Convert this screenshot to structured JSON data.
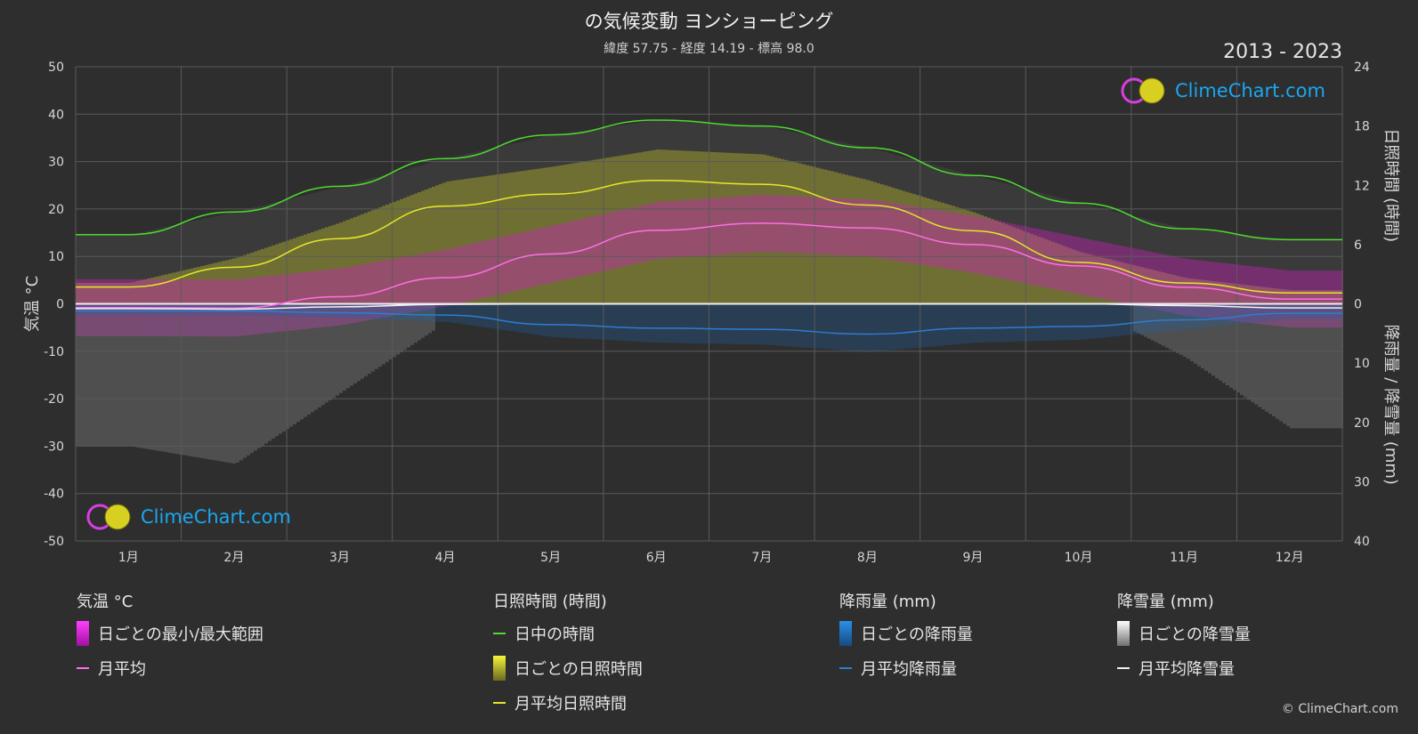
{
  "header": {
    "title": "の気候変動 ヨンショーピング",
    "subtitle": "緯度 57.75 - 経度 14.19 - 標高 98.0",
    "period": "2013 - 2023"
  },
  "branding": {
    "logo_text": "ClimeChart.com",
    "copyright": "© ClimeChart.com"
  },
  "colors": {
    "background": "#2e2e2e",
    "daylight": "#4cdb2e",
    "sunshine_line": "#e6e62a",
    "temp_line": "#ff6ee6",
    "temp_range": "#d020c0",
    "rain_line": "#2a7fd0",
    "rain_bar": "#1f5fa8",
    "snow_line": "#f0f0f0",
    "snow_bar": "#8c8c8c",
    "sunshine_bar": "#9a9a30",
    "logo": "#1aa7ee"
  },
  "chart_data": {
    "type": "line",
    "months": [
      "1月",
      "2月",
      "3月",
      "4月",
      "5月",
      "6月",
      "7月",
      "8月",
      "9月",
      "10月",
      "11月",
      "12月"
    ],
    "y_left": {
      "label": "気温 °C",
      "range": [
        -50,
        50
      ],
      "ticks": [
        "50",
        "40",
        "30",
        "20",
        "10",
        "0",
        "-10",
        "-20",
        "-30",
        "-40",
        "-50"
      ]
    },
    "y_right_top": {
      "label": "日照時間 (時間)",
      "range": [
        0,
        24
      ],
      "ticks": [
        "24",
        "18",
        "12",
        "6",
        "0"
      ]
    },
    "y_right_bottom": {
      "label": "降雨量 / 降雪量 (mm)",
      "range": [
        0,
        40
      ],
      "ticks": [
        "10",
        "20",
        "30",
        "40"
      ]
    },
    "grid": true,
    "series": [
      {
        "name": "日中の時間",
        "axis": "hours",
        "values": [
          7.0,
          9.3,
          11.9,
          14.7,
          17.1,
          18.6,
          18.0,
          15.8,
          13.0,
          10.2,
          7.6,
          6.5
        ]
      },
      {
        "name": "月平均日照時間",
        "axis": "hours",
        "values": [
          1.7,
          3.7,
          6.6,
          9.9,
          11.1,
          12.5,
          12.1,
          10.0,
          7.4,
          4.2,
          2.1,
          1.1
        ]
      },
      {
        "name": "月平均",
        "axis": "temp",
        "values": [
          -0.8,
          -0.9,
          1.5,
          5.5,
          10.5,
          15.5,
          17.0,
          16.0,
          12.5,
          8.0,
          3.5,
          1.0
        ]
      },
      {
        "name": "月平均降雨量",
        "axis": "mm",
        "values": [
          1.2,
          1.2,
          1.5,
          1.9,
          3.5,
          4.1,
          4.3,
          5.1,
          4.1,
          3.8,
          2.7,
          1.6
        ]
      },
      {
        "name": "月平均降雪量",
        "axis": "mm",
        "values": [
          0.8,
          0.9,
          0.5,
          0.1,
          0.0,
          0.0,
          0.0,
          0.0,
          0.0,
          0.0,
          0.3,
          0.7
        ]
      }
    ]
  },
  "legend": {
    "temp": {
      "title": "気温 °C",
      "range": "日ごとの最小/最大範囲",
      "avg": "月平均"
    },
    "sun": {
      "title": "日照時間 (時間)",
      "daylight": "日中の時間",
      "daily": "日ごとの日照時間",
      "avg": "月平均日照時間"
    },
    "rain": {
      "title": "降雨量 (mm)",
      "daily": "日ごとの降雨量",
      "avg": "月平均降雨量"
    },
    "snow": {
      "title": "降雪量 (mm)",
      "daily": "日ごとの降雪量",
      "avg": "月平均降雪量"
    }
  }
}
